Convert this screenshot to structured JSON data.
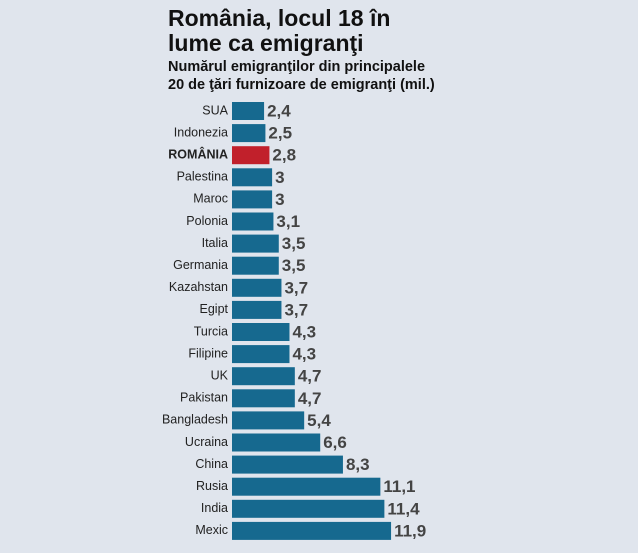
{
  "chart_data": {
    "type": "barh",
    "title": [
      "România, locul 18 în",
      "lume ca emigranţi"
    ],
    "subtitle": [
      "Numărul emigranţilor din principalele",
      "20 de ţări furnizoare de emigranţi (mil.)"
    ],
    "categories": [
      "SUA",
      "Indonezia",
      "ROMÂNIA",
      "Palestina",
      "Maroc",
      "Polonia",
      "Italia",
      "Germania",
      "Kazahstan",
      "Egipt",
      "Turcia",
      "Filipine",
      "UK",
      "Pakistan",
      "Bangladesh",
      "Ucraina",
      "China",
      "Rusia",
      "India",
      "Mexic"
    ],
    "values": [
      2.4,
      2.5,
      2.8,
      3,
      3,
      3.1,
      3.5,
      3.5,
      3.7,
      3.7,
      4.3,
      4.3,
      4.7,
      4.7,
      5.4,
      6.6,
      8.3,
      11.1,
      11.4,
      11.9
    ],
    "value_labels": [
      "2,4",
      "2,5",
      "2,8",
      "3",
      "3",
      "3,1",
      "3,5",
      "3,5",
      "3,7",
      "3,7",
      "4,3",
      "4,3",
      "4,7",
      "4,7",
      "5,4",
      "6,6",
      "8,3",
      "11,1",
      "11,4",
      "11,9"
    ],
    "colors": [
      "#16698f",
      "#16698f",
      "#c1202b",
      "#16698f",
      "#16698f",
      "#16698f",
      "#16698f",
      "#16698f",
      "#16698f",
      "#16698f",
      "#16698f",
      "#16698f",
      "#16698f",
      "#16698f",
      "#16698f",
      "#16698f",
      "#16698f",
      "#16698f",
      "#16698f",
      "#16698f"
    ],
    "bold_categories": [
      "ROMÂNIA"
    ],
    "xlim": [
      0,
      12
    ]
  }
}
